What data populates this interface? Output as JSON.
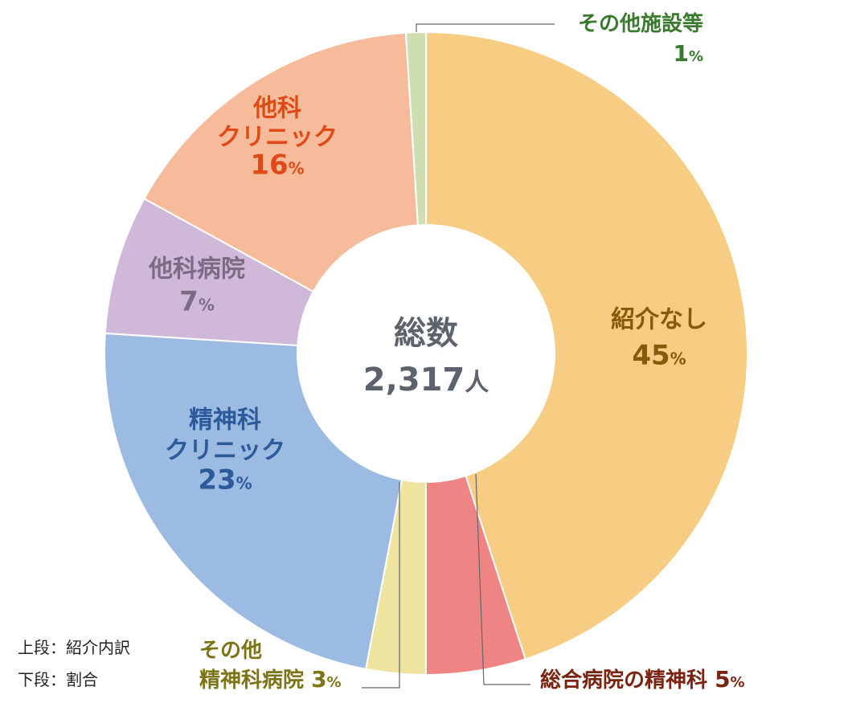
{
  "chart_data": {
    "type": "pie",
    "variant": "donut",
    "center_label": {
      "title": "総数",
      "value": "2,317",
      "unit": "人"
    },
    "slices": [
      {
        "name": "紹介なし",
        "percent": 45,
        "percent_label": "45",
        "color": "#F7CD84",
        "text_color": "#8A5A0B"
      },
      {
        "name": "総合病院の精神科",
        "percent": 5,
        "percent_label": "5",
        "color": "#EE8484",
        "text_color": "#7A2410"
      },
      {
        "name": "その他精神科病院",
        "percent": 3,
        "percent_label": "3",
        "color": "#EEE4A0",
        "text_color": "#7D7418"
      },
      {
        "name": "精神科クリニック",
        "percent": 23,
        "percent_label": "23",
        "color": "#9BBBE3",
        "text_color": "#2D5A9A"
      },
      {
        "name": "他科病院",
        "percent": 7,
        "percent_label": "7",
        "color": "#D0B8D8",
        "text_color": "#7D6A86"
      },
      {
        "name": "他科クリニック",
        "percent": 16,
        "percent_label": "16",
        "color": "#F6BB9B",
        "text_color": "#E04A17"
      },
      {
        "name": "その他施設等",
        "percent": 1,
        "percent_label": "1",
        "color": "#CFDEB1",
        "text_color": "#3A7A2E"
      }
    ],
    "percent_suffix": "%",
    "display_names": {
      "紹介なし": [
        "紹介なし"
      ],
      "総合病院の精神科": [
        "総合病院の精神科"
      ],
      "その他精神科病院": [
        "その他",
        "精神科病院"
      ],
      "精神科クリニック": [
        "精神科",
        "クリニック"
      ],
      "他科病院": [
        "他科病院"
      ],
      "他科クリニック": [
        "他科",
        "クリニック"
      ],
      "その他施設等": [
        "その他施設等"
      ]
    },
    "legend_notes": [
      "上段：紹介内訳",
      "下段：割合"
    ]
  }
}
